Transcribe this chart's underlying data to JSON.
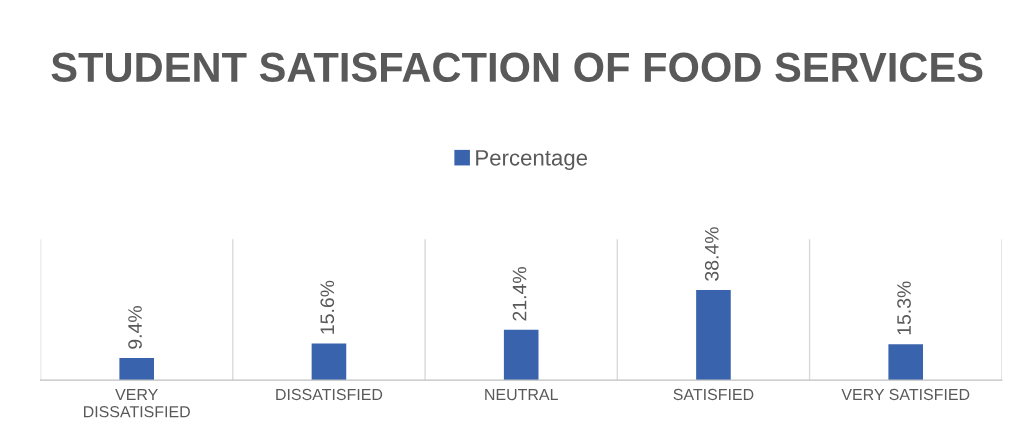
{
  "chart_data": {
    "type": "bar",
    "title": "STUDENT SATISFACTION OF FOOD SERVICES",
    "categories": [
      "VERY DISSATISFIED",
      "DISSATISFIED",
      "NEUTRAL",
      "SATISFIED",
      "VERY SATISFIED"
    ],
    "series": [
      {
        "name": "Percentage",
        "color": "#3a63ad",
        "values": [
          9.4,
          15.6,
          21.4,
          38.4,
          15.3
        ],
        "value_labels": [
          "9.4%",
          "15.6%",
          "21.4%",
          "38.4%",
          "15.3%"
        ]
      }
    ],
    "ylim": [
      0,
      60
    ],
    "tick_labels": "x",
    "grid": "x",
    "legend": "top"
  }
}
